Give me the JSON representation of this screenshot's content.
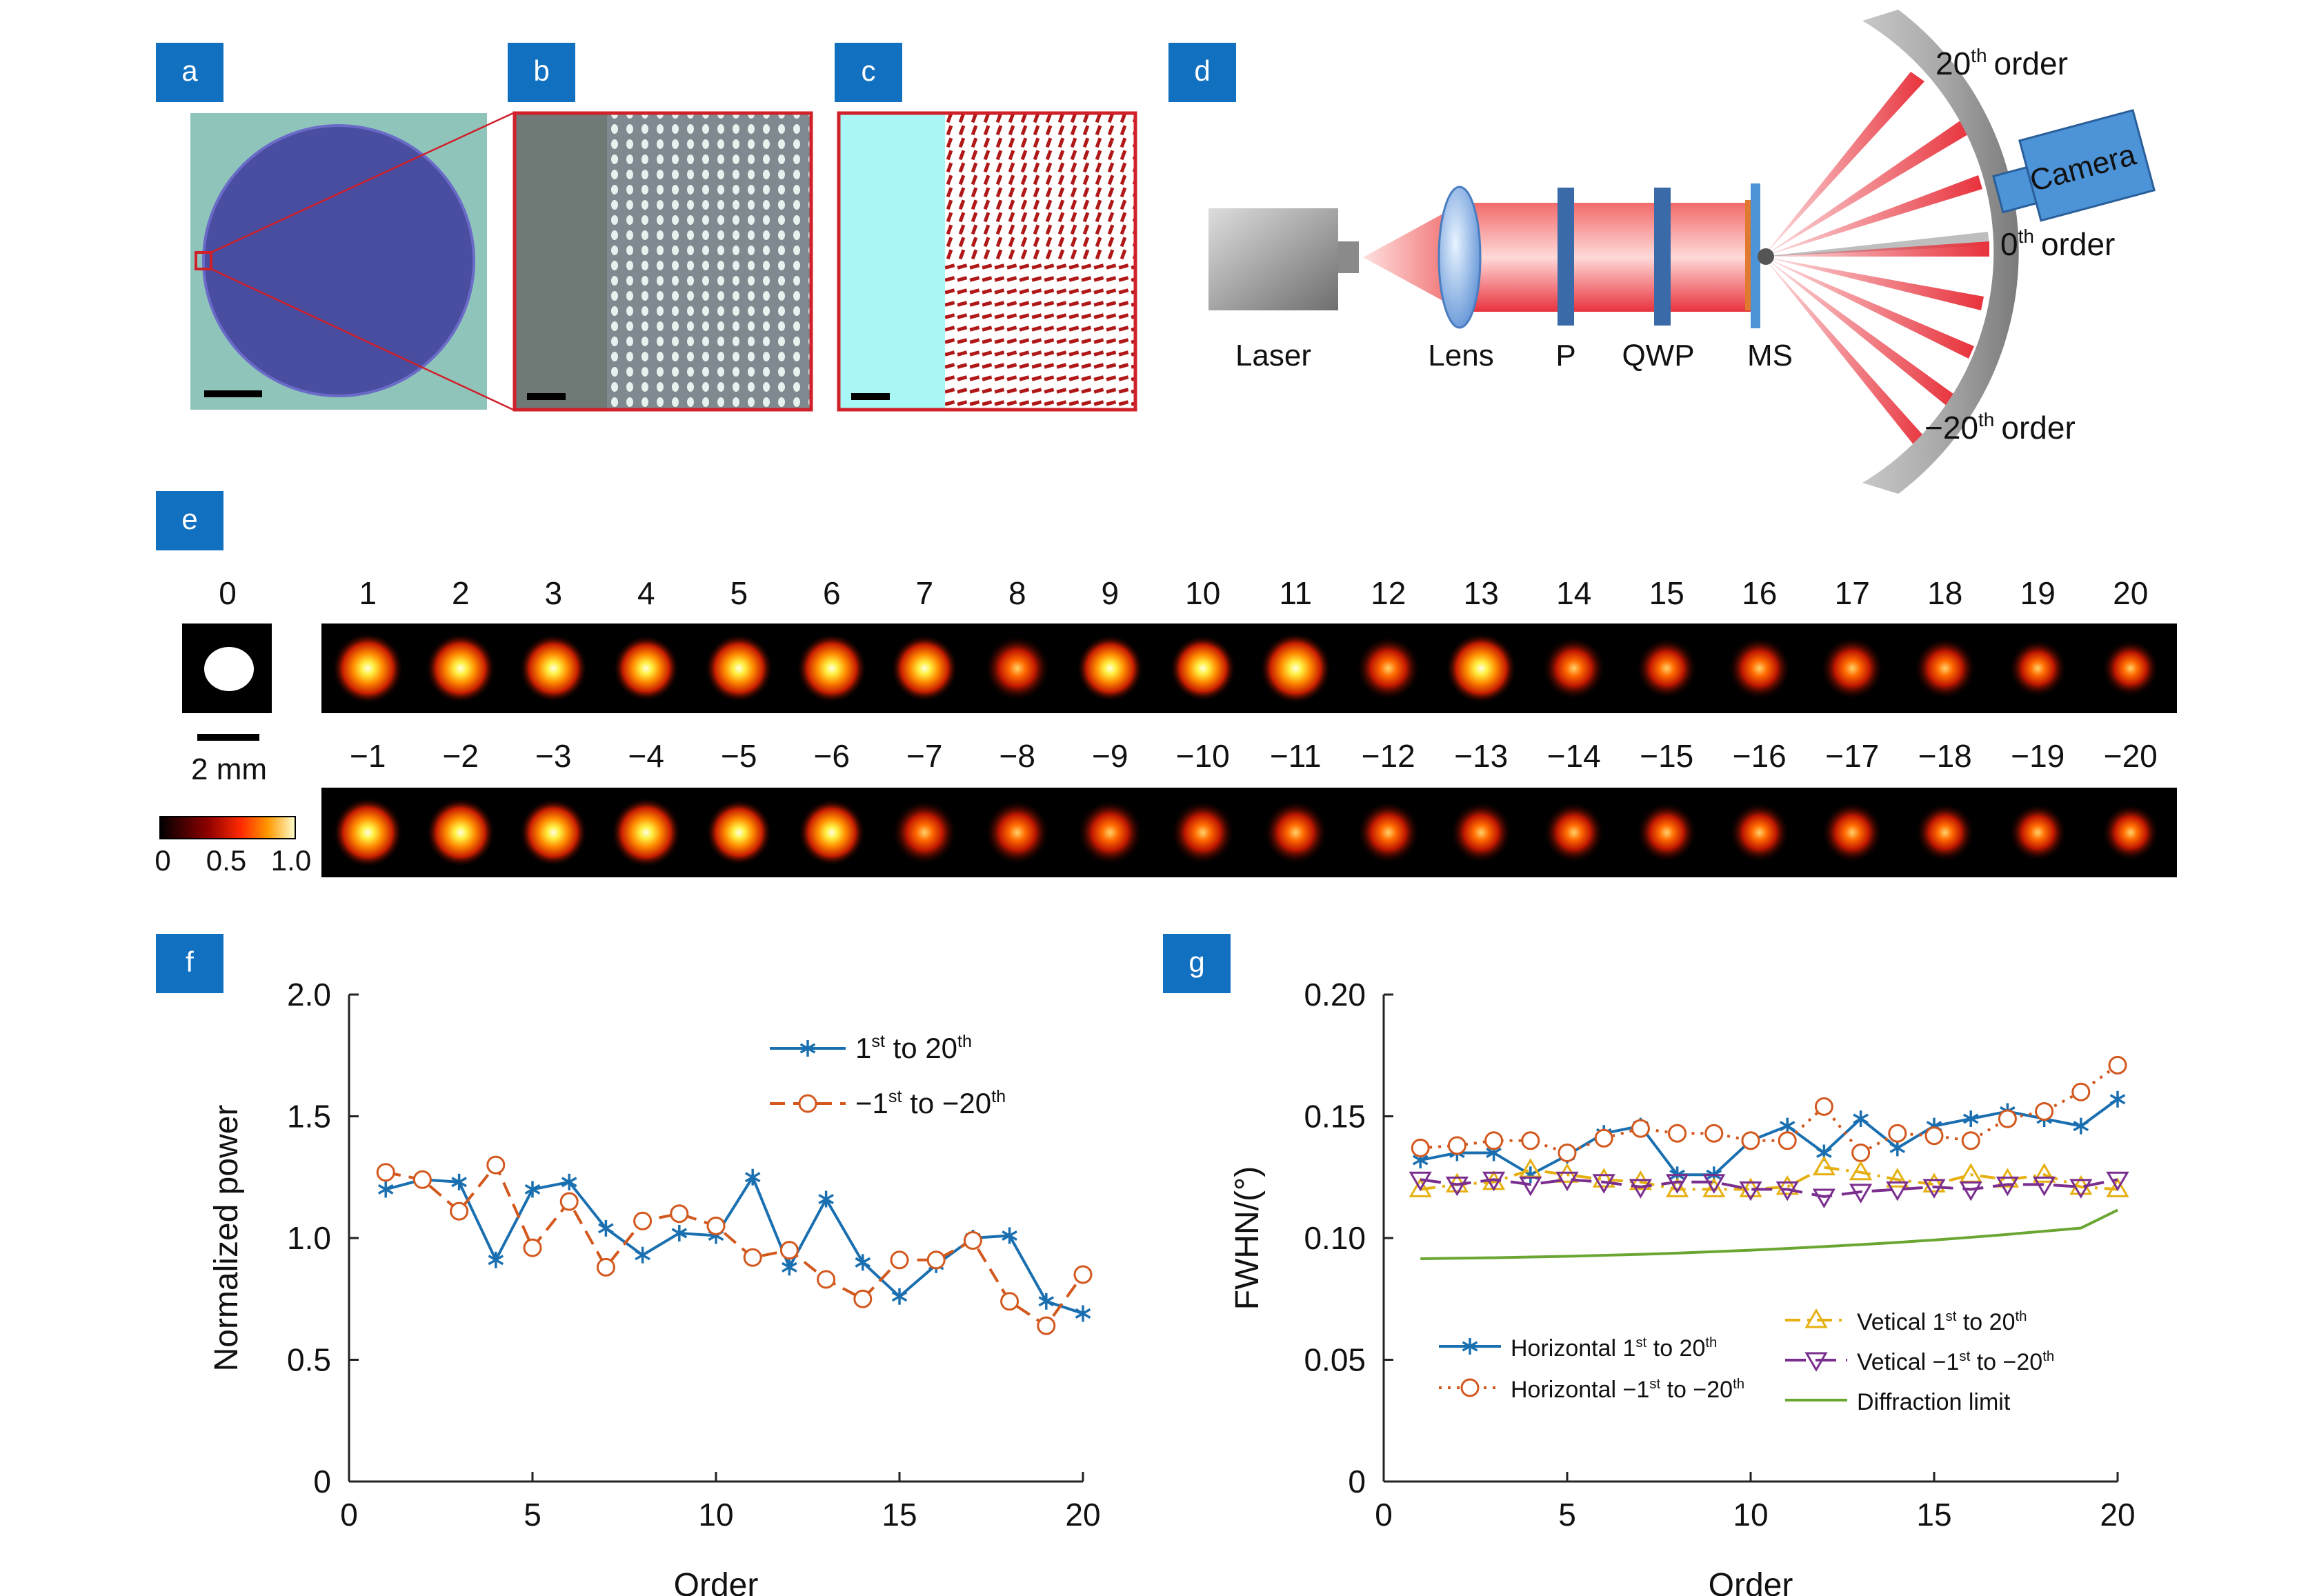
{
  "panel_labels": {
    "a": "a",
    "b": "b",
    "c": "c",
    "d": "d",
    "e": "e",
    "f": "f",
    "g": "g"
  },
  "colors": {
    "label_bg": "#1170c0",
    "blue": "#1a6fb0",
    "orange": "#d2581e",
    "yellow": "#e6b012",
    "purple": "#7a2e8e",
    "green": "#6aa632",
    "frame_red": "#d0202a",
    "cyan": "#a8f6f6",
    "disk": "#4a4ea0",
    "micro_bg": "#8fc4bb",
    "camera": "#4d93d8",
    "beam": "#e8323c"
  },
  "setup": {
    "laser": "Laser",
    "lens": "Lens",
    "polarizer": "P",
    "qwp": "QWP",
    "ms": "MS",
    "camera": "Camera",
    "order_top_num": "20",
    "order_top_sup": "th",
    "order_top_word": "order",
    "order_mid_num": "0",
    "order_mid_sup": "th",
    "order_mid_word": "order",
    "order_bot_num": "−20",
    "order_bot_sup": "th",
    "order_bot_word": "order"
  },
  "spots": {
    "zero_label": "0",
    "scale_label": "2 mm",
    "colorbar_ticks": [
      "0",
      "0.5",
      "1.0"
    ],
    "top_labels": [
      "1",
      "2",
      "3",
      "4",
      "5",
      "6",
      "7",
      "8",
      "9",
      "10",
      "11",
      "12",
      "13",
      "14",
      "15",
      "16",
      "17",
      "18",
      "19",
      "20"
    ],
    "bottom_labels": [
      "−1",
      "−2",
      "−3",
      "−4",
      "−5",
      "−6",
      "−7",
      "−8",
      "−9",
      "−10",
      "−11",
      "−12",
      "−13",
      "−14",
      "−15",
      "−16",
      "−17",
      "−18",
      "−19",
      "−20"
    ],
    "top_intensity": [
      1.0,
      0.95,
      0.9,
      0.82,
      0.9,
      0.95,
      0.85,
      0.8,
      0.85,
      0.82,
      1.0,
      0.75,
      0.98,
      0.72,
      0.65,
      0.72,
      0.72,
      0.68,
      0.55,
      0.52
    ],
    "bottom_intensity": [
      0.95,
      0.92,
      0.88,
      0.95,
      0.82,
      0.85,
      0.78,
      0.78,
      0.8,
      0.75,
      0.75,
      0.7,
      0.68,
      0.65,
      0.62,
      0.62,
      0.65,
      0.58,
      0.55,
      0.52
    ]
  },
  "chart_data": [
    {
      "type": "line",
      "xlabel": "Order",
      "ylabel": "Normalized power",
      "xlim": [
        0,
        20
      ],
      "ylim": [
        0,
        2.0
      ],
      "xticks": [
        "0",
        "5",
        "10",
        "15",
        "20"
      ],
      "yticks": [
        "0",
        "0.5",
        "1.0",
        "1.5",
        "2.0"
      ],
      "legend_position": "top-right",
      "series": [
        {
          "name": "1",
          "name_sup": "st",
          "name_mid": " to 20",
          "name_sup2": "th",
          "name_end": "",
          "color": "#1a6fb0",
          "style": "solid",
          "marker": "asterisk",
          "x": [
            1,
            2,
            3,
            4,
            5,
            6,
            7,
            8,
            9,
            10,
            11,
            12,
            13,
            14,
            15,
            16,
            17,
            18,
            19,
            20
          ],
          "y": [
            1.2,
            1.24,
            1.23,
            0.91,
            1.2,
            1.23,
            1.04,
            0.93,
            1.02,
            1.01,
            1.25,
            0.88,
            1.16,
            0.9,
            0.76,
            0.89,
            1.0,
            1.01,
            0.74,
            0.69
          ]
        },
        {
          "name": "−1",
          "name_sup": "st",
          "name_mid": " to −20",
          "name_sup2": "th",
          "name_end": "",
          "color": "#d2581e",
          "style": "dashed",
          "marker": "circle",
          "x": [
            1,
            2,
            3,
            4,
            5,
            6,
            7,
            8,
            9,
            10,
            11,
            12,
            13,
            14,
            15,
            16,
            17,
            18,
            19,
            20
          ],
          "y": [
            1.27,
            1.24,
            1.11,
            1.3,
            0.96,
            1.15,
            0.88,
            1.07,
            1.1,
            1.05,
            0.92,
            0.95,
            0.83,
            0.75,
            0.91,
            0.91,
            0.99,
            0.74,
            0.64,
            0.85
          ]
        }
      ]
    },
    {
      "type": "line",
      "xlabel": "Order",
      "ylabel": "FWHN/(°)",
      "xlim": [
        0,
        20
      ],
      "ylim": [
        0,
        0.2
      ],
      "xticks": [
        "0",
        "5",
        "10",
        "15",
        "20"
      ],
      "yticks": [
        "0",
        "0.05",
        "0.10",
        "0.15",
        "0.20"
      ],
      "legend_position": "bottom",
      "series": [
        {
          "name": "Horizontal 1",
          "name_sup": "st",
          "name_mid": " to 20",
          "name_sup2": "th",
          "name_end": "",
          "color": "#1a6fb0",
          "style": "solid",
          "marker": "asterisk",
          "x": [
            1,
            2,
            3,
            4,
            5,
            6,
            7,
            8,
            9,
            10,
            11,
            12,
            13,
            14,
            15,
            16,
            17,
            18,
            19,
            20
          ],
          "y": [
            0.132,
            0.135,
            0.135,
            0.126,
            0.134,
            0.143,
            0.146,
            0.126,
            0.126,
            0.14,
            0.146,
            0.135,
            0.149,
            0.137,
            0.146,
            0.149,
            0.152,
            0.149,
            0.146,
            0.157
          ]
        },
        {
          "name": "Horizontal −1",
          "name_sup": "st",
          "name_mid": " to −20",
          "name_sup2": "th",
          "name_end": "",
          "color": "#d2581e",
          "style": "dotted",
          "marker": "circle",
          "x": [
            1,
            2,
            3,
            4,
            5,
            6,
            7,
            8,
            9,
            10,
            11,
            12,
            13,
            14,
            15,
            16,
            17,
            18,
            19,
            20
          ],
          "y": [
            0.137,
            0.138,
            0.14,
            0.14,
            0.135,
            0.141,
            0.145,
            0.143,
            0.143,
            0.14,
            0.14,
            0.154,
            0.135,
            0.143,
            0.142,
            0.14,
            0.149,
            0.152,
            0.16,
            0.171
          ]
        },
        {
          "name": "Vetical 1",
          "name_sup": "st",
          "name_mid": " to 20",
          "name_sup2": "th",
          "name_end": "",
          "color": "#e6b012",
          "style": "dashdot",
          "marker": "triangle-up",
          "x": [
            1,
            2,
            3,
            4,
            5,
            6,
            7,
            8,
            9,
            10,
            11,
            12,
            13,
            14,
            15,
            16,
            17,
            18,
            19,
            20
          ],
          "y": [
            0.12,
            0.122,
            0.123,
            0.128,
            0.126,
            0.124,
            0.123,
            0.12,
            0.12,
            0.12,
            0.121,
            0.129,
            0.127,
            0.124,
            0.122,
            0.126,
            0.124,
            0.126,
            0.121,
            0.12
          ]
        },
        {
          "name": "Vetical −1",
          "name_sup": "st",
          "name_mid": " to −20",
          "name_sup2": "th",
          "name_end": "",
          "color": "#7a2e8e",
          "style": "longdash",
          "marker": "triangle-down",
          "x": [
            1,
            2,
            3,
            4,
            5,
            6,
            7,
            8,
            9,
            10,
            11,
            12,
            13,
            14,
            15,
            16,
            17,
            18,
            19,
            20
          ],
          "y": [
            0.124,
            0.122,
            0.124,
            0.122,
            0.124,
            0.123,
            0.121,
            0.123,
            0.123,
            0.12,
            0.12,
            0.117,
            0.119,
            0.12,
            0.121,
            0.12,
            0.122,
            0.122,
            0.121,
            0.124
          ]
        },
        {
          "name": "Diffraction limit",
          "name_sup": "",
          "name_mid": "",
          "name_sup2": "",
          "name_end": "",
          "color": "#6aa632",
          "style": "solid",
          "marker": "none",
          "x": [
            1,
            2,
            3,
            4,
            5,
            6,
            7,
            8,
            9,
            10,
            11,
            12,
            13,
            14,
            15,
            16,
            17,
            18,
            19,
            20
          ],
          "y": [
            0.0915,
            0.0917,
            0.0919,
            0.0922,
            0.0925,
            0.0929,
            0.0933,
            0.0938,
            0.0944,
            0.095,
            0.0957,
            0.0965,
            0.0973,
            0.0982,
            0.0992,
            0.1003,
            0.1015,
            0.1028,
            0.1041,
            0.1115
          ]
        }
      ]
    }
  ]
}
